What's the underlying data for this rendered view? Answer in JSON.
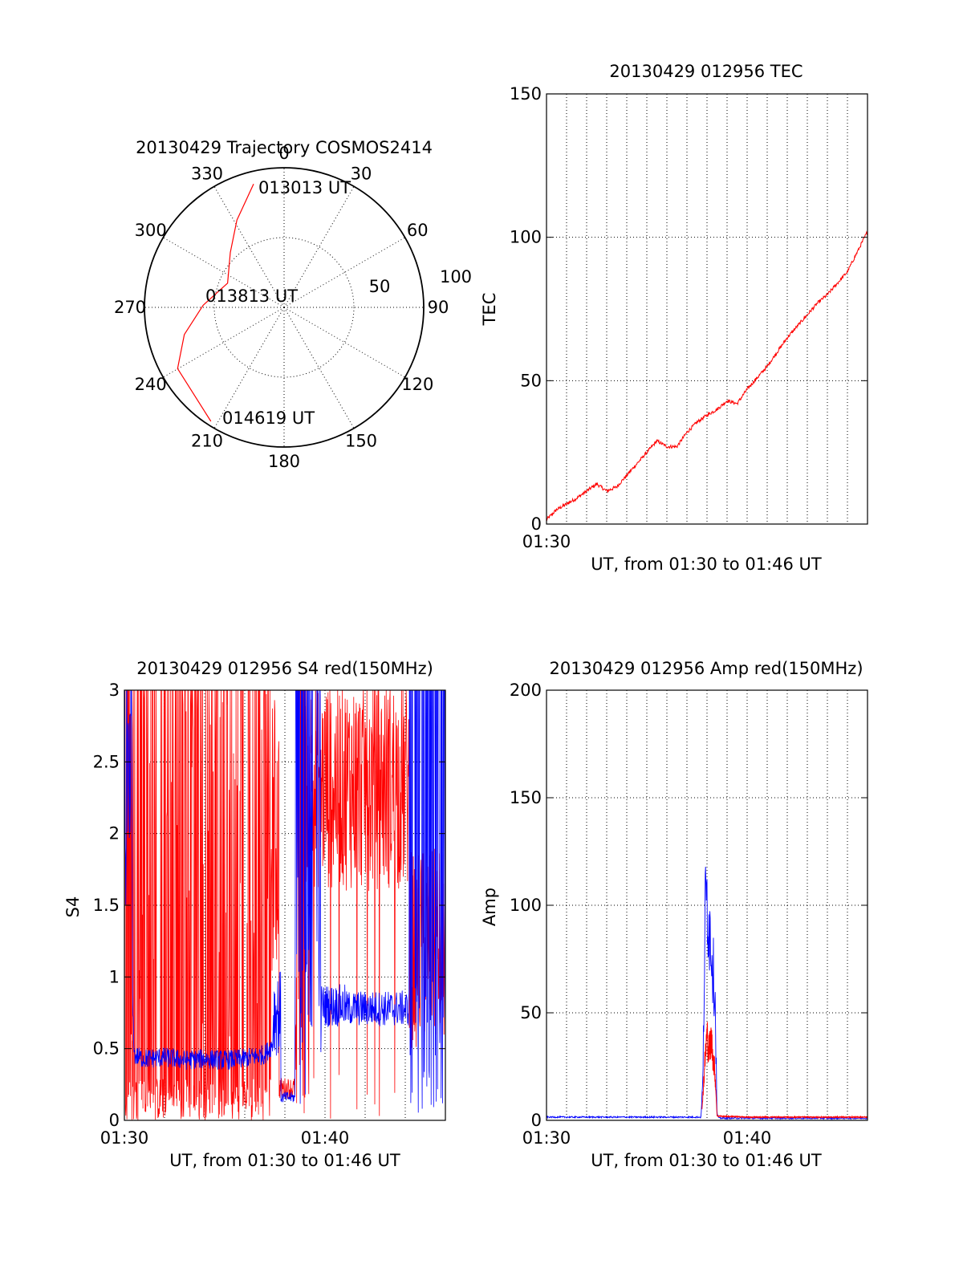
{
  "colors": {
    "red": "#ff0000",
    "blue": "#0000ff",
    "axis": "#000000",
    "background": "#ffffff"
  },
  "chart_data": [
    {
      "id": "trajectory",
      "type": "polar",
      "title": "20130429 Trajectory COSMOS2414",
      "azimuth_labels": [
        "0",
        "30",
        "60",
        "90",
        "120",
        "150",
        "180",
        "210",
        "240",
        "270",
        "300",
        "330"
      ],
      "radial_tick_labels": [
        "50",
        "100"
      ],
      "grid": true,
      "series": [
        {
          "color": "#ff0000",
          "points": [
            {
              "az": 346.1,
              "r": 91
            },
            {
              "az": 331.6,
              "r": 71
            },
            {
              "az": 315.6,
              "r": 55
            },
            {
              "az": 293.2,
              "r": 44
            },
            {
              "az": 271.5,
              "r": 58
            },
            {
              "az": 254.8,
              "r": 74
            },
            {
              "az": 240.1,
              "r": 88
            },
            {
              "az": 212.7,
              "r": 97
            }
          ]
        }
      ],
      "annotations": [
        "013013 UT",
        "013813 UT",
        "014619 UT"
      ]
    },
    {
      "id": "tec",
      "type": "line",
      "title": "20130429 012956 TEC",
      "xlabel": "UT, from 01:30 to 01:46 UT",
      "ylabel": "TEC",
      "x_tick_labels": [
        "01:30"
      ],
      "y_ticks": [
        0,
        50,
        100,
        150
      ],
      "ylim": [
        0,
        150
      ],
      "xlim_minutes": [
        0,
        16
      ],
      "grid": true,
      "series": [
        {
          "color": "#ff0000",
          "x_minutes": [
            0,
            0.5,
            1.0,
            1.5,
            2.0,
            2.5,
            3.0,
            3.5,
            4.0,
            4.5,
            5.0,
            5.5,
            6.0,
            6.5,
            7.0,
            7.5,
            8.0,
            8.5,
            9.0,
            9.5,
            10.0,
            10.5,
            11.0,
            11.5,
            12.0,
            12.5,
            13.0,
            13.5,
            14.0,
            14.5,
            15.0,
            15.5,
            16.0
          ],
          "values": [
            1.5,
            5,
            7,
            9,
            11.5,
            14,
            11.5,
            13,
            17,
            21,
            25,
            29,
            27,
            27,
            32,
            35.5,
            38,
            40,
            43,
            42,
            47,
            51,
            55,
            60,
            65,
            69,
            73,
            77,
            80,
            84,
            88,
            95,
            102
          ]
        }
      ]
    },
    {
      "id": "s4",
      "type": "line",
      "title": "20130429 012956 S4 red(150MHz)",
      "xlabel": "UT, from 01:30 to 01:46 UT",
      "ylabel": "S4",
      "x_tick_labels": [
        "01:30",
        "01:40"
      ],
      "y_ticks": [
        0,
        0.5,
        1,
        1.5,
        2,
        2.5,
        3
      ],
      "y_tick_labels": [
        "0",
        "0.5",
        "1",
        "1.5",
        "2",
        "2.5",
        "3"
      ],
      "ylim": [
        0,
        3
      ],
      "xlim_minutes": [
        0,
        16
      ],
      "grid": true,
      "series": [
        {
          "color": "#ff0000",
          "x_minutes": [
            0,
            1,
            2,
            3,
            4,
            5,
            6,
            7,
            7.4,
            7.7,
            8.0,
            8.5,
            9,
            10,
            11,
            12,
            13,
            14,
            14.5,
            15,
            16
          ],
          "values": [
            2.6,
            2.4,
            2.5,
            2.6,
            2.5,
            2.4,
            2.6,
            2.4,
            1.6,
            0.6,
            0.22,
            0.6,
            2.2,
            2.8,
            2.3,
            2.2,
            2.3,
            2.3,
            1.3,
            1.1,
            1.2
          ]
        },
        {
          "color": "#0000ff",
          "x_minutes": [
            0,
            0.5,
            1,
            2,
            3,
            4,
            5,
            6,
            7,
            7.5,
            7.8,
            8.2,
            8.6,
            9,
            10,
            11,
            12,
            13,
            14,
            14.5,
            15,
            16
          ],
          "values": [
            2.5,
            0.45,
            0.43,
            0.44,
            0.42,
            0.43,
            0.42,
            0.43,
            0.46,
            0.55,
            0.15,
            0.14,
            2.4,
            2.3,
            1.0,
            0.8,
            0.8,
            0.78,
            0.75,
            2.5,
            1.0,
            2.5
          ]
        }
      ]
    },
    {
      "id": "amp",
      "type": "line",
      "title": "20130429 012956 Amp red(150MHz)",
      "xlabel": "UT, from 01:30 to 01:46 UT",
      "ylabel": "Amp",
      "x_tick_labels": [
        "01:30",
        "01:40"
      ],
      "y_ticks": [
        0,
        50,
        100,
        150,
        200
      ],
      "ylim": [
        0,
        200
      ],
      "xlim_minutes": [
        0,
        16
      ],
      "grid": true,
      "series": [
        {
          "color": "#0000ff",
          "x_minutes": [
            0,
            4,
            7.7,
            7.8,
            7.9,
            8.0,
            8.1,
            8.2,
            8.3,
            8.4,
            8.5,
            8.6,
            9,
            12,
            16
          ],
          "values": [
            1.5,
            1.5,
            1.5,
            20,
            95,
            105,
            90,
            85,
            70,
            60,
            3,
            1,
            1,
            1,
            1
          ]
        },
        {
          "color": "#ff0000",
          "x_minutes": [
            7.75,
            7.9,
            8.0,
            8.1,
            8.2,
            8.3,
            8.4,
            8.5,
            10,
            13,
            16
          ],
          "values": [
            5,
            28,
            40,
            32,
            38,
            30,
            22,
            2,
            1.5,
            1.5,
            1.5
          ]
        }
      ]
    }
  ]
}
